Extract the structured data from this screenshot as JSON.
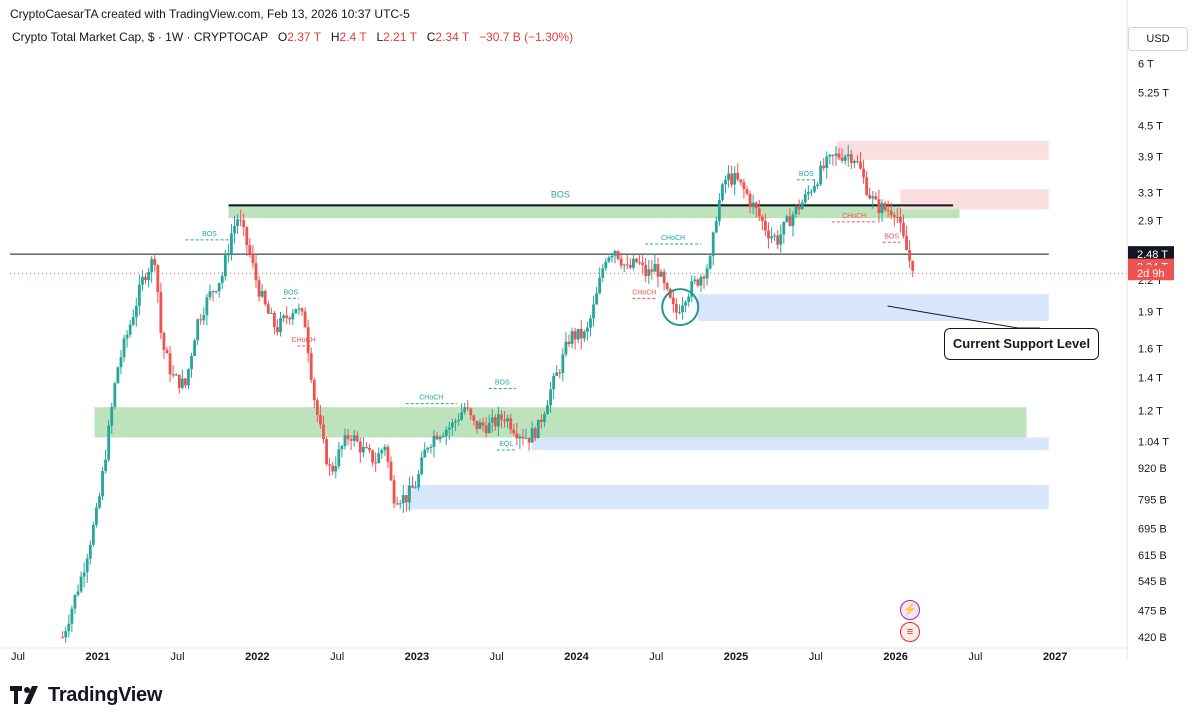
{
  "header": {
    "creator": "CryptoCaesarTA created with TradingView.com, Feb 13, 2026 10:37 UTC-5",
    "symbol": "Crypto Total Market Cap, $ · 1W · CRYPTOCAP",
    "open_label": "O",
    "open": "2.37 T",
    "high_label": "H",
    "high": "2.4 T",
    "low_label": "L",
    "low": "2.21 T",
    "close_label": "C",
    "close": "2.34 T",
    "change": "−30.7 B (−1.30%)",
    "currency": "USD"
  },
  "colors": {
    "up": "#26a69a",
    "down": "#ef5350",
    "demand_zone": "#b7e0b5",
    "supply_zone": "#fbdcdc",
    "support_zone": "#d4e3fb",
    "annotation_up": "#26a69a",
    "annotation_down": "#ef5350"
  },
  "chart_data": {
    "type": "candlestick",
    "title": "Crypto Total Market Cap",
    "interval": "1W",
    "y_scale": "log",
    "y_tick_labels": [
      "6 T",
      "5.25 T",
      "4.5 T",
      "3.9 T",
      "3.3 T",
      "2.9 T",
      "2.2 T",
      "1.9 T",
      "1.6 T",
      "1.4 T",
      "1.2 T",
      "1.04 T",
      "920 B",
      "795 B",
      "695 B",
      "615 B",
      "545 B",
      "475 B",
      "420 B"
    ],
    "y_tick_values": [
      6000,
      5250,
      4500,
      3900,
      3300,
      2900,
      2200,
      1900,
      1600,
      1400,
      1200,
      1040,
      920,
      795,
      695,
      615,
      545,
      475,
      420
    ],
    "x_tick_labels": [
      "Jul",
      "2021",
      "Jul",
      "2022",
      "Jul",
      "2023",
      "Jul",
      "2024",
      "Jul",
      "2025",
      "Jul",
      "2026",
      "Jul",
      "2027"
    ],
    "x_tick_times": [
      2020.5,
      2021.0,
      2021.5,
      2022.0,
      2022.5,
      2023.0,
      2023.5,
      2024.0,
      2024.5,
      2025.0,
      2025.5,
      2026.0,
      2026.5,
      2027.0
    ],
    "x_range": [
      2020.45,
      2027.45
    ],
    "y_range_billions": [
      405,
      6450
    ],
    "anchors": [
      [
        2020.78,
        420
      ],
      [
        2020.9,
        560
      ],
      [
        2021.0,
        760
      ],
      [
        2021.07,
        1100
      ],
      [
        2021.12,
        1450
      ],
      [
        2021.2,
        1780
      ],
      [
        2021.29,
        2250
      ],
      [
        2021.36,
        2450
      ],
      [
        2021.4,
        1650
      ],
      [
        2021.47,
        1400
      ],
      [
        2021.55,
        1350
      ],
      [
        2021.62,
        1800
      ],
      [
        2021.7,
        2050
      ],
      [
        2021.78,
        2250
      ],
      [
        2021.84,
        2750
      ],
      [
        2021.88,
        2950
      ],
      [
        2021.95,
        2500
      ],
      [
        2022.0,
        2150
      ],
      [
        2022.06,
        1900
      ],
      [
        2022.12,
        1750
      ],
      [
        2022.18,
        1850
      ],
      [
        2022.24,
        1950
      ],
      [
        2022.3,
        1800
      ],
      [
        2022.36,
        1250
      ],
      [
        2022.42,
        1000
      ],
      [
        2022.46,
        900
      ],
      [
        2022.52,
        1000
      ],
      [
        2022.58,
        1080
      ],
      [
        2022.66,
        1000
      ],
      [
        2022.74,
        950
      ],
      [
        2022.8,
        1030
      ],
      [
        2022.85,
        810
      ],
      [
        2022.93,
        800
      ],
      [
        2023.0,
        860
      ],
      [
        2023.06,
        1020
      ],
      [
        2023.12,
        1080
      ],
      [
        2023.22,
        1120
      ],
      [
        2023.3,
        1220
      ],
      [
        2023.36,
        1120
      ],
      [
        2023.46,
        1120
      ],
      [
        2023.55,
        1170
      ],
      [
        2023.63,
        1090
      ],
      [
        2023.7,
        1060
      ],
      [
        2023.76,
        1110
      ],
      [
        2023.83,
        1300
      ],
      [
        2023.9,
        1480
      ],
      [
        2023.96,
        1700
      ],
      [
        2024.06,
        1700
      ],
      [
        2024.12,
        2000
      ],
      [
        2024.18,
        2450
      ],
      [
        2024.24,
        2550
      ],
      [
        2024.32,
        2300
      ],
      [
        2024.38,
        2400
      ],
      [
        2024.44,
        2250
      ],
      [
        2024.5,
        2350
      ],
      [
        2024.56,
        2080
      ],
      [
        2024.62,
        1880
      ],
      [
        2024.68,
        2050
      ],
      [
        2024.76,
        2200
      ],
      [
        2024.84,
        2400
      ],
      [
        2024.88,
        3050
      ],
      [
        2024.94,
        3550
      ],
      [
        2025.0,
        3500
      ],
      [
        2025.06,
        3300
      ],
      [
        2025.12,
        3050
      ],
      [
        2025.2,
        2750
      ],
      [
        2025.26,
        2650
      ],
      [
        2025.3,
        2800
      ],
      [
        2025.36,
        3000
      ],
      [
        2025.43,
        3200
      ],
      [
        2025.5,
        3500
      ],
      [
        2025.56,
        3750
      ],
      [
        2025.62,
        3900
      ],
      [
        2025.69,
        3950
      ],
      [
        2025.74,
        3900
      ],
      [
        2025.78,
        3650
      ],
      [
        2025.83,
        3300
      ],
      [
        2025.88,
        3100
      ],
      [
        2025.94,
        3050
      ],
      [
        2026.0,
        3050
      ],
      [
        2026.04,
        2700
      ],
      [
        2026.09,
        2400
      ],
      [
        2026.12,
        2340
      ]
    ],
    "zones": [
      {
        "kind": "demand",
        "from": 2021.82,
        "to": 2026.4,
        "low": 2930,
        "high": 3130
      },
      {
        "kind": "demand",
        "from": 2020.98,
        "to": 2026.82,
        "low": 1060,
        "high": 1220
      },
      {
        "kind": "supply",
        "from": 2025.63,
        "to": 2026.96,
        "low": 3840,
        "high": 4190
      },
      {
        "kind": "supply",
        "from": 2026.03,
        "to": 2026.96,
        "low": 3050,
        "high": 3350
      },
      {
        "kind": "support",
        "from": 2024.76,
        "to": 2026.96,
        "low": 1820,
        "high": 2060
      },
      {
        "kind": "support",
        "from": 2023.72,
        "to": 2026.96,
        "low": 1000,
        "high": 1060
      },
      {
        "kind": "support",
        "from": 2022.93,
        "to": 2026.96,
        "low": 760,
        "high": 850
      }
    ],
    "lines": [
      {
        "kind": "bos_main",
        "from": 2021.82,
        "to": 2026.36,
        "value": 3110,
        "label": "BOS"
      },
      {
        "kind": "level",
        "from": 2020.45,
        "to": 2026.96,
        "value": 2480
      }
    ],
    "price_labels": [
      {
        "text": "2.48 T",
        "value": 2480,
        "style": "dark"
      },
      {
        "text": "2.34 T",
        "value": 2340,
        "style": "red"
      },
      {
        "text": "2d 9h",
        "value": 2270,
        "style": "red"
      }
    ],
    "markers": [
      {
        "text": "BOS",
        "time": 2021.55,
        "value": 2650,
        "color": "up",
        "line_to": 2021.85
      },
      {
        "text": "BOS",
        "time": 2022.16,
        "value": 2020,
        "color": "up",
        "line_to": 2022.26
      },
      {
        "text": "CHoCH",
        "time": 2022.25,
        "value": 1620,
        "color": "down",
        "line_to": 2022.33
      },
      {
        "text": "CHoCH",
        "time": 2022.93,
        "value": 1240,
        "color": "up",
        "line_to": 2023.25
      },
      {
        "text": "BOS",
        "time": 2023.45,
        "value": 1330,
        "color": "up",
        "line_to": 2023.62
      },
      {
        "text": "EQL",
        "time": 2023.5,
        "value": 1000,
        "color": "up",
        "line_to": 2023.62
      },
      {
        "text": "CHoCH",
        "time": 2024.43,
        "value": 2600,
        "color": "up",
        "line_to": 2024.78
      },
      {
        "text": "CHoCH",
        "time": 2024.35,
        "value": 2020,
        "color": "down",
        "line_to": 2024.5
      },
      {
        "text": "BOS",
        "time": 2025.38,
        "value": 3500,
        "color": "up",
        "line_to": 2025.5
      },
      {
        "text": "CHoCH",
        "time": 2025.6,
        "value": 2880,
        "color": "down",
        "line_to": 2025.88
      },
      {
        "text": "BOS",
        "time": 2025.92,
        "value": 2620,
        "color": "down",
        "line_to": 2026.03
      }
    ],
    "highlight_circle": {
      "time": 2024.65,
      "value": 1940
    },
    "callout": {
      "text": "Current Support Level",
      "arrow_to_time": 2025.95,
      "arrow_to_value": 1950
    }
  },
  "footer": {
    "brand": "TradingView"
  }
}
